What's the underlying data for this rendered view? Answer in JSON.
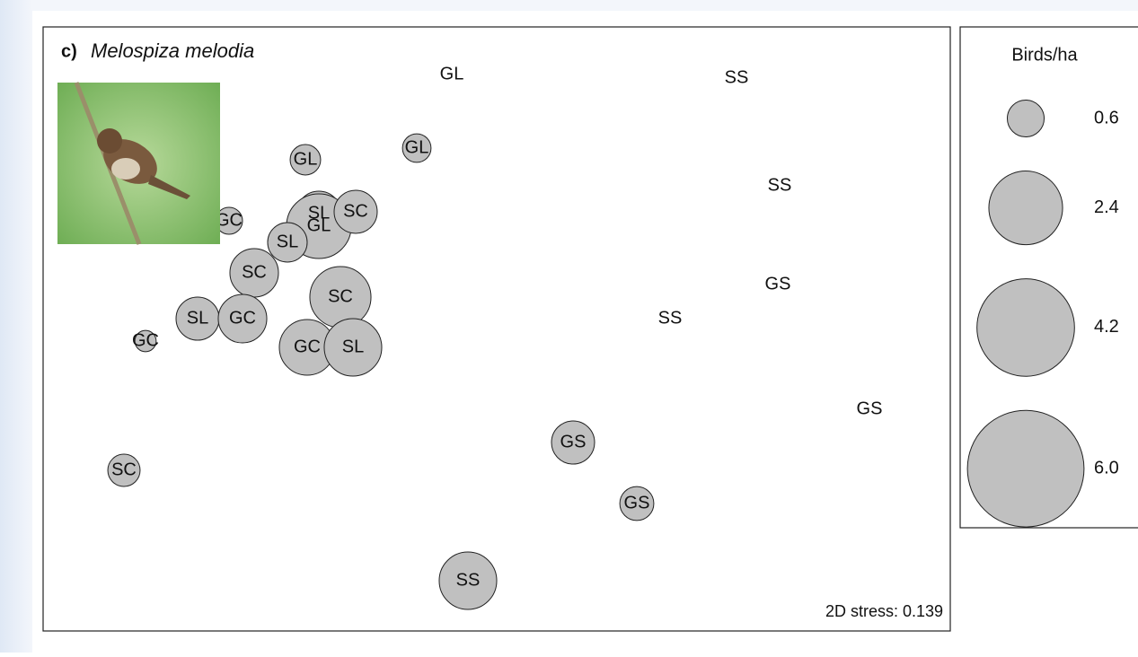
{
  "chart_data": {
    "type": "bubble",
    "panel": "c)",
    "title": "Melospiza melodia",
    "annotation": "2D stress: 0.139",
    "size_title": "Birds/ha",
    "color": "#c0c0c0",
    "labels": [
      "GL",
      "SS",
      "GL",
      "GL",
      "SS",
      "GC",
      "SL",
      "GL",
      "SC",
      "SL",
      "SC",
      "SC",
      "GS",
      "SS",
      "SL",
      "GC",
      "GC",
      "GC",
      "SL",
      "GS",
      "GS",
      "SC",
      "GS",
      "SS"
    ],
    "x": [
      455,
      772,
      292,
      416,
      820,
      207,
      307,
      307,
      348,
      272,
      235,
      331,
      818,
      698,
      172,
      222,
      114,
      294,
      345,
      920,
      590,
      90,
      661,
      473
    ],
    "y": [
      620,
      616,
      525,
      538,
      496,
      457,
      465,
      451,
      467,
      433,
      399,
      372,
      386,
      348,
      348,
      348,
      323,
      316,
      316,
      247,
      210,
      179,
      142,
      56
    ],
    "sizes": [
      0,
      0,
      0.41,
      0.36,
      0,
      0.32,
      0.89,
      1.85,
      0.82,
      0.69,
      1.04,
      1.65,
      0,
      0,
      0.82,
      1.04,
      0.2,
      1.37,
      1.46,
      0,
      0.82,
      0.46,
      0.51,
      1.46
    ],
    "xlim": [
      0,
      1010
    ],
    "ylim": [
      0,
      673
    ],
    "legend_sizes": [
      0.6,
      2.4,
      4.2,
      {
        "value": 6,
        "label": "6.0"
      }
    ]
  }
}
